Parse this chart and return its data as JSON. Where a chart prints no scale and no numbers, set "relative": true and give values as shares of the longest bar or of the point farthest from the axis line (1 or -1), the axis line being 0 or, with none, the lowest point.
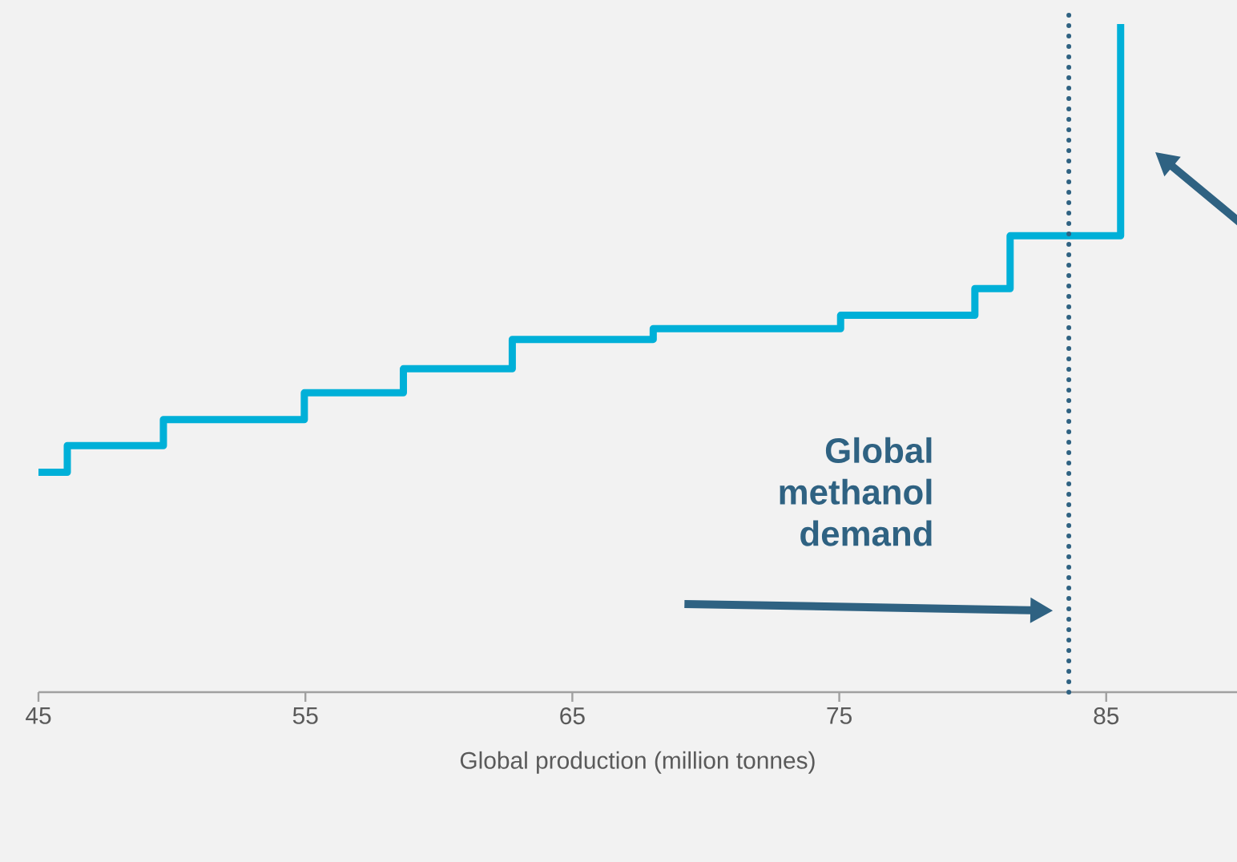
{
  "chart_data": {
    "type": "step",
    "relative": true,
    "color": "#00b0d8",
    "x": [
      45,
      46.08,
      49.68,
      54.96,
      58.67,
      62.75,
      68.03,
      75.05,
      80.08,
      81.4,
      85.54
    ],
    "values": [
      0.329,
      0.369,
      0.408,
      0.448,
      0.484,
      0.528,
      0.544,
      0.564,
      0.604,
      0.683,
      1
    ],
    "xlim": [
      45,
      89.9
    ],
    "xticks": [
      45,
      55,
      65,
      75,
      85
    ],
    "xlabel": "Global production (million tonnes)",
    "ref_lines": [
      {
        "axis": "x",
        "value": 83.6,
        "label": "Global methanol demand",
        "color": "#2f6282",
        "line_style": "dotted"
      }
    ]
  }
}
